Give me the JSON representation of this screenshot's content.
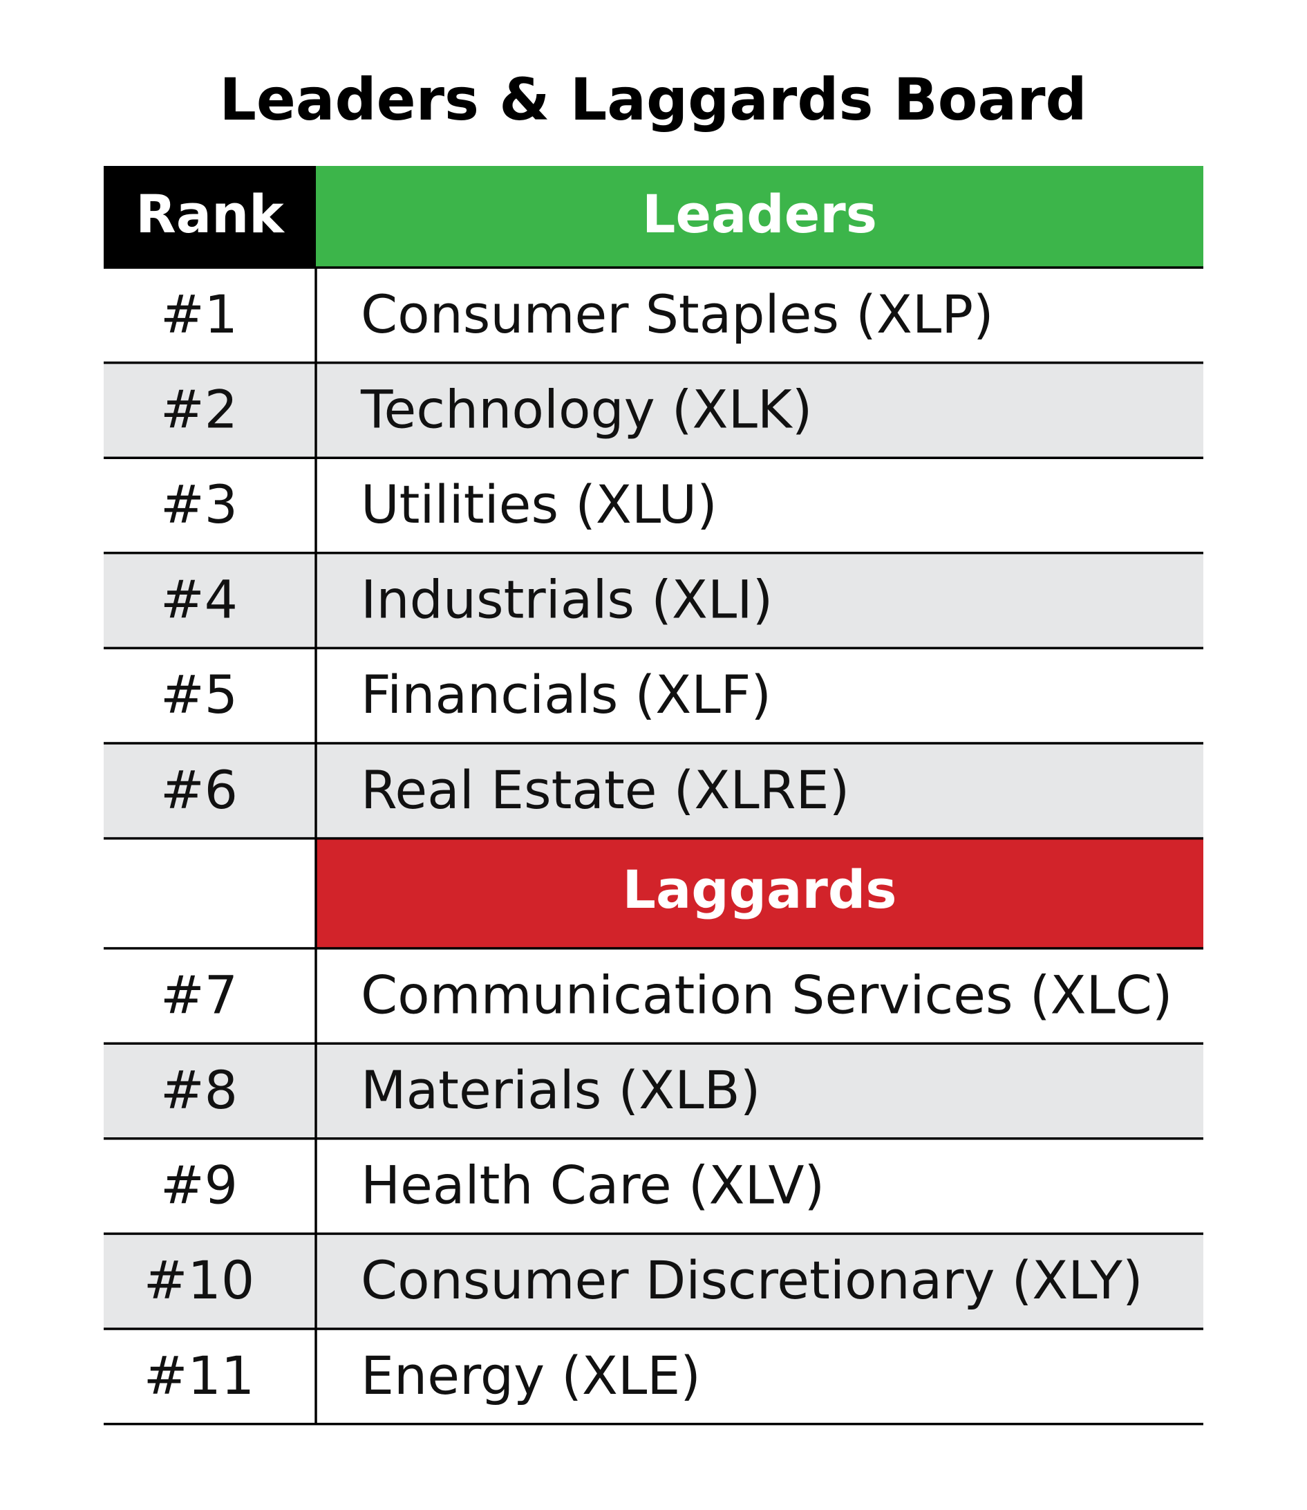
{
  "title": "Leaders & Laggards Board",
  "table": {
    "header": [
      "Rank",
      "Leaders"
    ],
    "leaders": [
      [
        "#1",
        "Consumer Staples (XLP)"
      ],
      [
        "#2",
        "Technology (XLK)"
      ],
      [
        "#3",
        "Utilities (XLU)"
      ],
      [
        "#4",
        "Industrials (XLI)"
      ],
      [
        "#5",
        "Financials (XLF)"
      ],
      [
        "#6",
        "Real Estate (XLRE)"
      ]
    ],
    "laggards_header": "Laggards",
    "laggards": [
      [
        "#7",
        "Communication Services (XLC)"
      ],
      [
        "#8",
        "Materials (XLB)"
      ],
      [
        "#9",
        "Health Care (XLV)"
      ],
      [
        "#10",
        "Consumer Discretionary (XLY)"
      ],
      [
        "#11",
        "Energy (XLE)"
      ]
    ]
  }
}
